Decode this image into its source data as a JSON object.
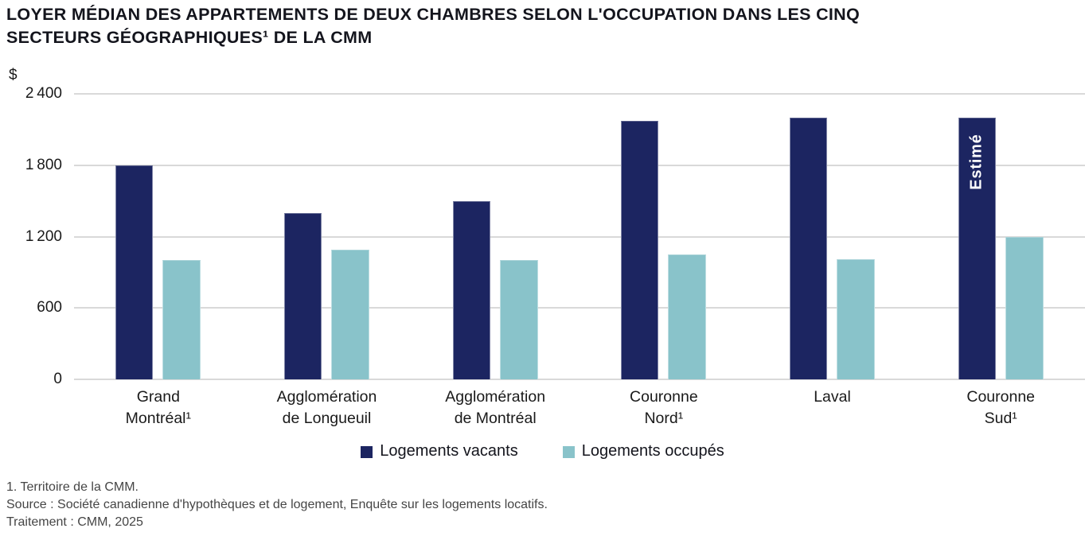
{
  "title": "LOYER MÉDIAN DES APPARTEMENTS DE DEUX CHAMBRES SELON L'OCCUPATION DANS LES CINQ\nSECTEURS GÉOGRAPHIQUES¹ DE LA CMM",
  "chart_data": {
    "type": "bar",
    "unit_label": "$",
    "categories": [
      "Grand\nMontréal¹",
      "Agglomération\nde Longueuil",
      "Agglomération\nde Montréal",
      "Couronne\nNord¹",
      "Laval",
      "Couronne\nSud¹"
    ],
    "series": [
      {
        "name": "Logements vacants",
        "color": "#1c2561",
        "values": [
          1800,
          1400,
          1500,
          2175,
          2200,
          2200
        ]
      },
      {
        "name": "Logements occupés",
        "color": "#89c3ca",
        "values": [
          1000,
          1090,
          1000,
          1050,
          1010,
          1200
        ]
      }
    ],
    "ylim": [
      0,
      2400
    ],
    "yticks": [
      {
        "value": 0,
        "label": "0"
      },
      {
        "value": 600,
        "label": "600"
      },
      {
        "value": 1200,
        "label": "1 200"
      },
      {
        "value": 1800,
        "label": "1 800"
      },
      {
        "value": 2400,
        "label": "2 400"
      }
    ],
    "grid": "horizontal",
    "legend_position": "bottom",
    "annotations": [
      {
        "text": "Estimé",
        "series_index": 0,
        "category_index": 5,
        "color": "#ffffff"
      }
    ]
  },
  "footer": {
    "footnote": "1. Territoire de la CMM.",
    "source": "Source : Société canadienne d'hypothèques et de logement, Enquête sur les logements locatifs.",
    "treatment": "Traitement : CMM, 2025"
  },
  "colors": {
    "gridline": "#d9d9d9",
    "title_text": "#14151d",
    "axis_text": "#1a1a1a",
    "footer_text": "#454545"
  }
}
